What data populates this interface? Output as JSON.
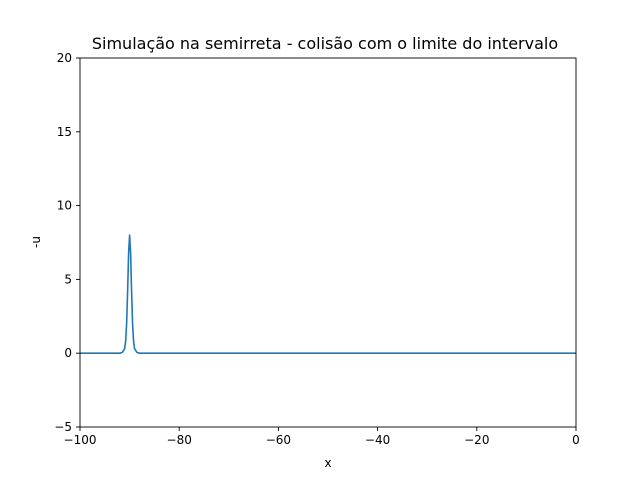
{
  "chart_data": {
    "type": "line",
    "title": "Simulação na semirreta -  colisão com o limite do intervalo",
    "xlabel": "x",
    "ylabel": "-u",
    "xlim": [
      -100,
      0
    ],
    "ylim": [
      -5,
      20
    ],
    "xticks": [
      -100,
      -80,
      -60,
      -40,
      -20,
      0
    ],
    "xtick_labels": [
      "−100",
      "−80",
      "−60",
      "−40",
      "−20",
      "0"
    ],
    "yticks": [
      -5,
      0,
      5,
      10,
      15,
      20
    ],
    "ytick_labels": [
      "−5",
      "0",
      "5",
      "10",
      "15",
      "20"
    ],
    "grid": false,
    "series": [
      {
        "color": "#1f77b4",
        "x": [
          -100,
          -92,
          -91.5,
          -91,
          -90.8,
          -90.6,
          -90.4,
          -90.2,
          -90,
          -89.8,
          -89.6,
          -89.4,
          -89.2,
          -89,
          -88.5,
          -88,
          0
        ],
        "y": [
          0,
          0,
          0.05,
          0.3,
          0.8,
          2.0,
          4.2,
          6.8,
          8.0,
          6.8,
          4.2,
          2.0,
          0.8,
          0.3,
          0.05,
          0,
          0
        ]
      }
    ]
  }
}
